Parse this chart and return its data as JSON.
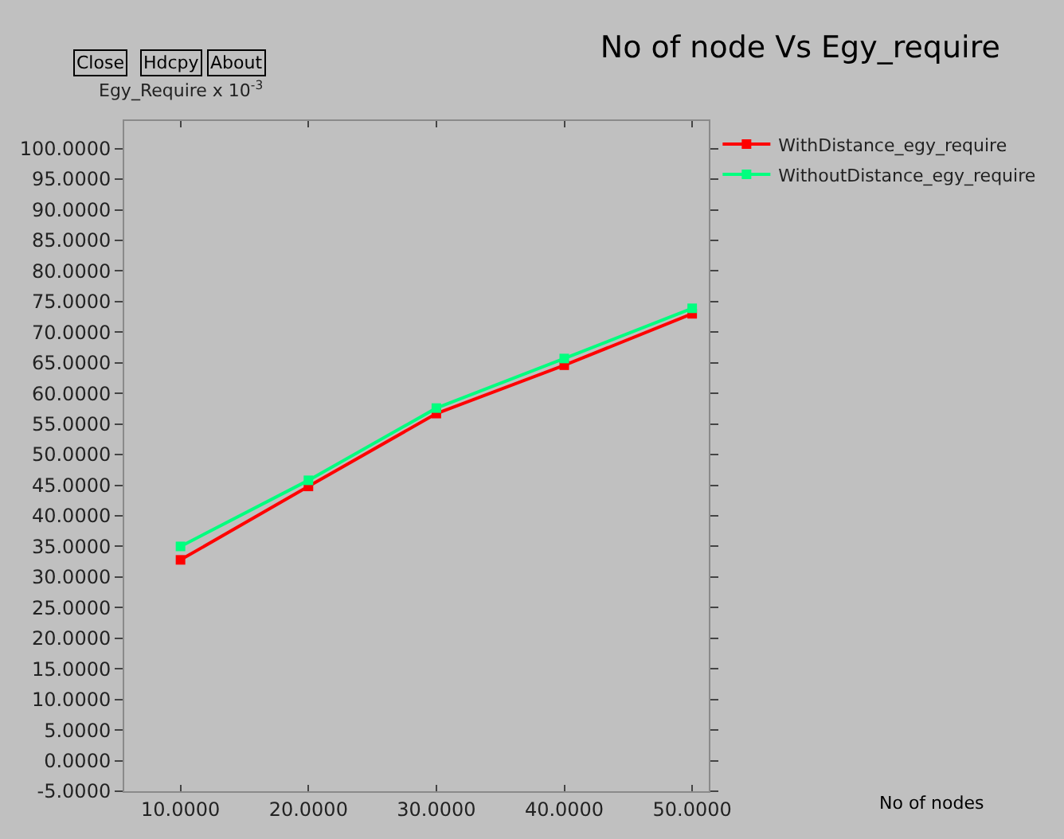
{
  "chart_data": {
    "type": "line",
    "title": "No of node Vs Egy_require",
    "ylabel": "Egy_Require x 10$^{-3}$",
    "annotations": [
      "Close",
      "Hdcpy",
      "About",
      "No of nodes"
    ],
    "x": [
      10,
      20,
      30,
      40,
      50
    ],
    "series": [
      {
        "name": "WithDistance_egy_require",
        "color": "#ff0000",
        "values": [
          32.8,
          44.8,
          56.7,
          64.6,
          73.0
        ]
      },
      {
        "name": "WithoutDistance_egy_require",
        "color": "#00ff7f",
        "values": [
          35.0,
          45.8,
          57.6,
          65.7,
          73.9
        ]
      }
    ],
    "xlim": [
      5.6,
      51.3
    ],
    "xticks": [
      {
        "value": 10,
        "label": "10.0000"
      },
      {
        "value": 20,
        "label": "20.0000"
      },
      {
        "value": 30,
        "label": "30.0000"
      },
      {
        "value": 40,
        "label": "40.0000"
      },
      {
        "value": 50,
        "label": "50.0000"
      }
    ],
    "ylim": [
      -5,
      104.5
    ],
    "yticks": [
      {
        "value": -5,
        "label": "-5.0000"
      },
      {
        "value": 0,
        "label": "0.0000"
      },
      {
        "value": 5,
        "label": "5.0000"
      },
      {
        "value": 10,
        "label": "10.0000"
      },
      {
        "value": 15,
        "label": "15.0000"
      },
      {
        "value": 20,
        "label": "20.0000"
      },
      {
        "value": 25,
        "label": "25.0000"
      },
      {
        "value": 30,
        "label": "30.0000"
      },
      {
        "value": 35,
        "label": "35.0000"
      },
      {
        "value": 40,
        "label": "40.0000"
      },
      {
        "value": 45,
        "label": "45.0000"
      },
      {
        "value": 50,
        "label": "50.0000"
      },
      {
        "value": 55,
        "label": "55.0000"
      },
      {
        "value": 60,
        "label": "60.0000"
      },
      {
        "value": 65,
        "label": "65.0000"
      },
      {
        "value": 70,
        "label": "70.0000"
      },
      {
        "value": 75,
        "label": "75.0000"
      },
      {
        "value": 80,
        "label": "80.0000"
      },
      {
        "value": 85,
        "label": "85.0000"
      },
      {
        "value": 90,
        "label": "90.0000"
      },
      {
        "value": 95,
        "label": "95.0000"
      },
      {
        "value": 100,
        "label": "100.0000"
      }
    ],
    "grid": false,
    "legend": "top right",
    "marker": "square",
    "line_style": "solid"
  }
}
